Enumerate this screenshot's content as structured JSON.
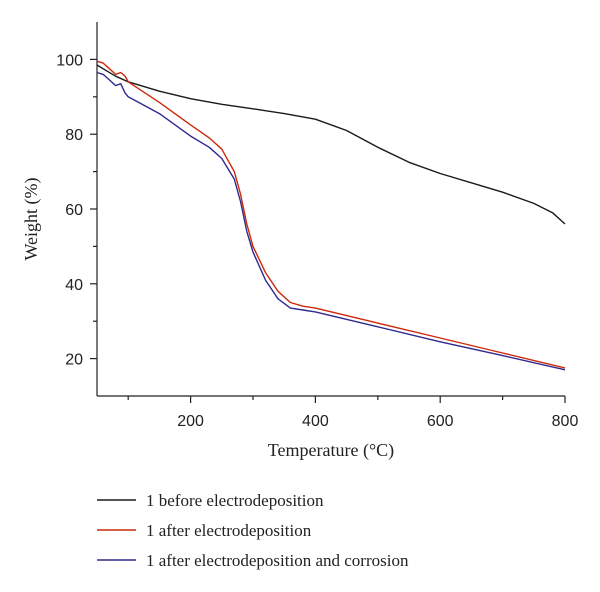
{
  "chart_data": {
    "type": "line",
    "xlabel": "Temperature (°C)",
    "ylabel": "Weight (%)",
    "xlim": [
      50,
      800
    ],
    "ylim": [
      10,
      110
    ],
    "xticks": [
      200,
      400,
      600,
      800
    ],
    "xticks_minor": [
      100,
      300,
      500,
      700
    ],
    "yticks": [
      20,
      40,
      60,
      80,
      100
    ],
    "yticks_minor": [
      30,
      50,
      70,
      90
    ],
    "grid": false,
    "legend_position": "bottom",
    "series": [
      {
        "name": "1 before electrodeposition",
        "color": "#1a1a1a",
        "points": [
          [
            50,
            98.5
          ],
          [
            60,
            97.5
          ],
          [
            80,
            95.5
          ],
          [
            100,
            94.0
          ],
          [
            150,
            91.5
          ],
          [
            200,
            89.5
          ],
          [
            250,
            88.0
          ],
          [
            300,
            86.8
          ],
          [
            350,
            85.5
          ],
          [
            400,
            84.0
          ],
          [
            450,
            81.0
          ],
          [
            500,
            76.5
          ],
          [
            550,
            72.5
          ],
          [
            600,
            69.5
          ],
          [
            660,
            66.5
          ],
          [
            700,
            64.5
          ],
          [
            750,
            61.5
          ],
          [
            780,
            59.0
          ],
          [
            800,
            56.0
          ]
        ]
      },
      {
        "name": "1 after electrodeposition",
        "color": "#cc2a0a",
        "points": [
          [
            50,
            99.5
          ],
          [
            60,
            99.0
          ],
          [
            70,
            97.5
          ],
          [
            80,
            96.0
          ],
          [
            88,
            96.5
          ],
          [
            95,
            95.5
          ],
          [
            100,
            94.0
          ],
          [
            150,
            88.5
          ],
          [
            200,
            82.5
          ],
          [
            230,
            79.0
          ],
          [
            250,
            76.0
          ],
          [
            270,
            70.0
          ],
          [
            280,
            64.0
          ],
          [
            290,
            56.0
          ],
          [
            300,
            50.0
          ],
          [
            320,
            43.0
          ],
          [
            340,
            38.0
          ],
          [
            360,
            35.0
          ],
          [
            380,
            34.0
          ],
          [
            400,
            33.5
          ],
          [
            500,
            29.5
          ],
          [
            600,
            25.5
          ],
          [
            700,
            21.5
          ],
          [
            800,
            17.5
          ]
        ]
      },
      {
        "name": "1 after electrodeposition and corrosion",
        "color": "#2e2a8f",
        "points": [
          [
            50,
            96.5
          ],
          [
            60,
            96.0
          ],
          [
            70,
            94.5
          ],
          [
            80,
            93.0
          ],
          [
            88,
            93.5
          ],
          [
            95,
            91.0
          ],
          [
            100,
            90.0
          ],
          [
            150,
            85.5
          ],
          [
            200,
            79.5
          ],
          [
            230,
            76.5
          ],
          [
            250,
            73.5
          ],
          [
            270,
            68.0
          ],
          [
            280,
            62.0
          ],
          [
            290,
            54.0
          ],
          [
            300,
            48.5
          ],
          [
            320,
            41.0
          ],
          [
            340,
            36.0
          ],
          [
            360,
            33.5
          ],
          [
            380,
            33.0
          ],
          [
            400,
            32.5
          ],
          [
            500,
            28.5
          ],
          [
            600,
            24.5
          ],
          [
            700,
            20.8
          ],
          [
            800,
            17.0
          ]
        ]
      }
    ]
  }
}
